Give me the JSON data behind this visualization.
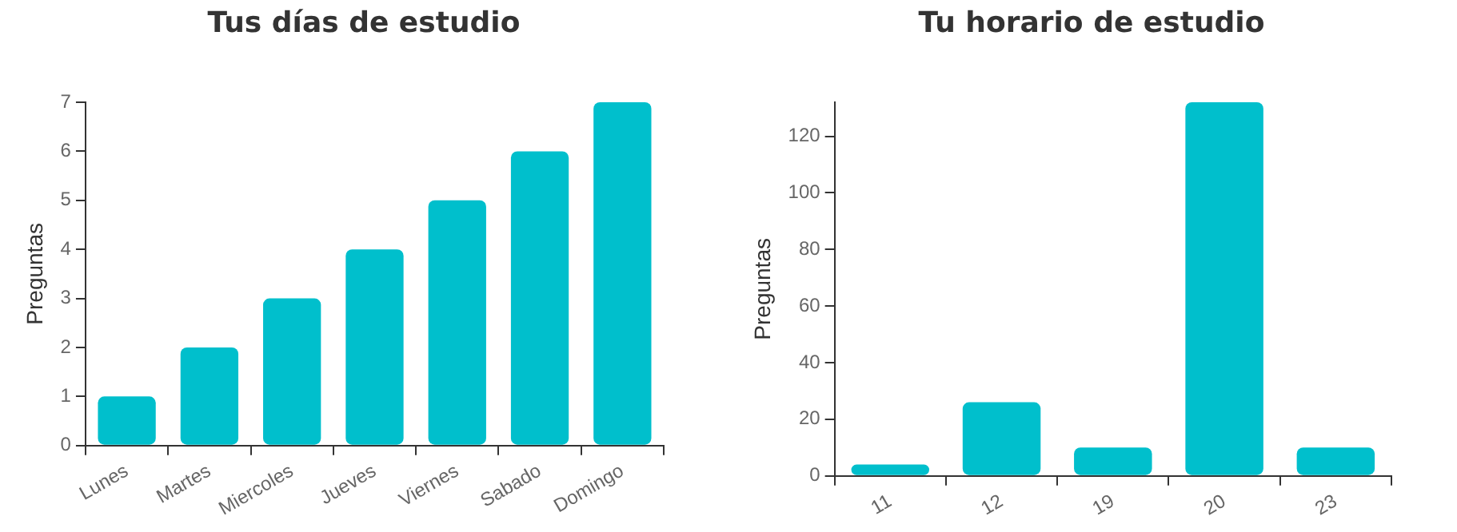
{
  "chart_data": [
    {
      "type": "bar",
      "title": "Tus días de estudio",
      "ylabel": "Preguntas",
      "categories": [
        "Lunes",
        "Martes",
        "Miercoles",
        "Jueves",
        "Viernes",
        "Sabado",
        "Domingo"
      ],
      "values": [
        1,
        2,
        3,
        4,
        5,
        6,
        7
      ],
      "color": "#00bfcc",
      "ylim": [
        0,
        7
      ],
      "yticks": [
        0,
        1,
        2,
        3,
        4,
        5,
        6,
        7
      ],
      "grid": false,
      "legend": false
    },
    {
      "type": "bar",
      "title": "Tu horario de estudio",
      "ylabel": "Preguntas",
      "categories": [
        "11",
        "12",
        "19",
        "20",
        "23"
      ],
      "values": [
        4,
        26,
        10,
        132,
        10
      ],
      "color": "#00bfcc",
      "ylim": [
        0,
        132
      ],
      "yticks": [
        0,
        20,
        40,
        60,
        80,
        100,
        120
      ],
      "grid": false,
      "legend": false
    }
  ]
}
